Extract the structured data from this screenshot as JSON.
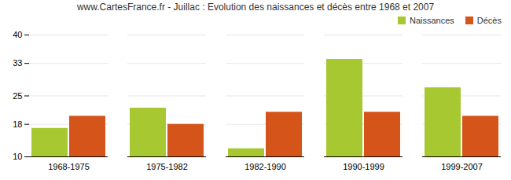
{
  "chart_data": {
    "type": "bar",
    "title": "www.CartesFrance.fr - Juillac : Evolution des naissances et décès entre 1968 et 2007",
    "categories": [
      "1968-1975",
      "1975-1982",
      "1982-1990",
      "1990-1999",
      "1999-2007"
    ],
    "series": [
      {
        "name": "Naissances",
        "color": "#a8c832",
        "values": [
          17,
          22,
          12,
          34,
          27
        ]
      },
      {
        "name": "Décès",
        "color": "#d4541a",
        "values": [
          20,
          18,
          21,
          21,
          20
        ]
      }
    ],
    "ylim": [
      10,
      40
    ],
    "yticks": [
      10,
      18,
      25,
      33,
      40
    ],
    "grid": true,
    "legend": "upper right"
  }
}
